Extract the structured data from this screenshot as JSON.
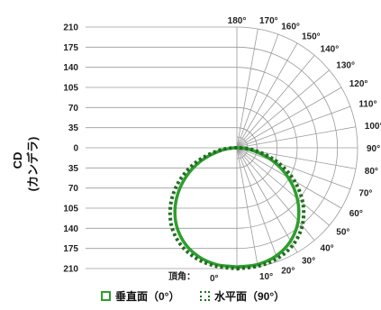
{
  "chart_data": {
    "type": "polar",
    "y_axis_label_top": "CD",
    "y_axis_label_bottom": "(カンデラ)",
    "y_ticks_upper": [
      "210",
      "175",
      "140",
      "105",
      "70",
      "35",
      "0"
    ],
    "y_ticks_lower": [
      "35",
      "70",
      "105",
      "140",
      "175",
      "210"
    ],
    "radial_max": 210,
    "angle_labels": [
      "0°",
      "10°",
      "20°",
      "30°",
      "40°",
      "50°",
      "60°",
      "70°",
      "80°",
      "90°",
      "100°",
      "110°",
      "120°",
      "130°",
      "140°",
      "150°",
      "160°",
      "170°",
      "180°"
    ],
    "angle_axis_title": "頂角：",
    "series": [
      {
        "name": "垂直面（0°）",
        "line_style": "solid",
        "color": "#2e9e2e",
        "points": [
          {
            "angle": 0,
            "cd": 207
          },
          {
            "angle": 10,
            "cd": 206
          },
          {
            "angle": 20,
            "cd": 200
          },
          {
            "angle": 30,
            "cd": 187
          },
          {
            "angle": 40,
            "cd": 166
          },
          {
            "angle": 50,
            "cd": 137
          },
          {
            "angle": 60,
            "cd": 103
          },
          {
            "angle": 70,
            "cd": 66
          },
          {
            "angle": 80,
            "cd": 29
          },
          {
            "angle": 90,
            "cd": 0
          }
        ]
      },
      {
        "name": "水平面（90°）",
        "line_style": "dotted",
        "color": "#1f6e1f",
        "points": [
          {
            "angle": 0,
            "cd": 210
          },
          {
            "angle": 10,
            "cd": 209
          },
          {
            "angle": 20,
            "cd": 205
          },
          {
            "angle": 30,
            "cd": 195
          },
          {
            "angle": 40,
            "cd": 177
          },
          {
            "angle": 50,
            "cd": 150
          },
          {
            "angle": 60,
            "cd": 116
          },
          {
            "angle": 70,
            "cd": 77
          },
          {
            "angle": 80,
            "cd": 37
          },
          {
            "angle": 90,
            "cd": 0
          }
        ]
      }
    ]
  },
  "legend": [
    {
      "label": "垂直面（0°）",
      "color": "#2e9e2e",
      "style": "solid"
    },
    {
      "label": "水平面（90°）",
      "color": "#1f6e1f",
      "style": "dotted"
    }
  ]
}
